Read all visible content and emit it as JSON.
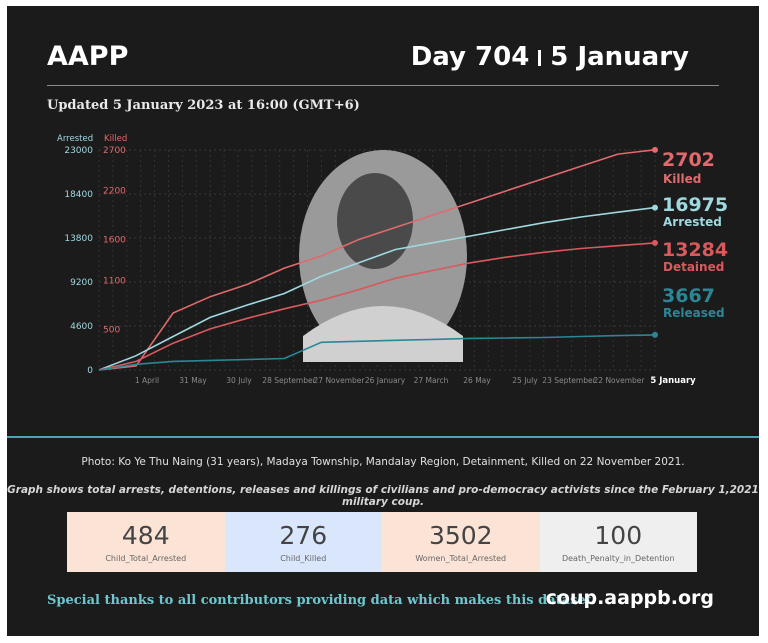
{
  "header": {
    "brand": "AAPP",
    "day": "Day 704",
    "date": "5 January"
  },
  "updated": "Updated 5 January 2023 at 16:00 (GMT+6)",
  "colors": {
    "killed": "#e06a6c",
    "arrested": "#9fd9e0",
    "detained": "#d9595c",
    "released": "#2b8797",
    "panel": "#1c1b1c"
  },
  "chart_data": {
    "type": "line",
    "axes": {
      "left": {
        "label": "Arrested",
        "ticks": [
          0,
          4600,
          9200,
          13800,
          18400,
          23000
        ],
        "range": [
          0,
          23000
        ]
      },
      "right": {
        "label": "Killed",
        "ticks": [
          500,
          1100,
          1600,
          2200,
          2700
        ],
        "range": [
          0,
          2700
        ]
      }
    },
    "x_ticks": [
      "1 April",
      "31 May",
      "30 July",
      "28 September",
      "27 November",
      "26 January",
      "27 March",
      "26 May",
      "25 July",
      "23 September",
      "22 November",
      "5 January"
    ],
    "series": [
      {
        "name": "Killed",
        "axis": "right",
        "end_label": "2702",
        "color": "#e06a6c",
        "values": [
          0,
          50,
          700,
          900,
          1050,
          1250,
          1400,
          1600,
          1750,
          1900,
          2050,
          2200,
          2350,
          2500,
          2650,
          2702
        ]
      },
      {
        "name": "Arrested",
        "axis": "left",
        "end_label": "16975",
        "color": "#9fd9e0",
        "values": [
          0,
          1500,
          3500,
          5500,
          6800,
          8000,
          9800,
          11200,
          12600,
          13300,
          14000,
          14700,
          15400,
          16000,
          16500,
          16975
        ]
      },
      {
        "name": "Detained",
        "axis": "left",
        "end_label": "13284",
        "color": "#d9595c",
        "values": [
          0,
          900,
          2800,
          4300,
          5400,
          6400,
          7300,
          8400,
          9600,
          10400,
          11200,
          11800,
          12300,
          12700,
          13000,
          13284
        ]
      },
      {
        "name": "Released",
        "axis": "left",
        "end_label": "3667",
        "color": "#2b8797",
        "values": [
          0,
          600,
          900,
          1000,
          1100,
          1200,
          2900,
          3000,
          3100,
          3200,
          3300,
          3350,
          3400,
          3500,
          3600,
          3667
        ]
      }
    ],
    "grid": true
  },
  "photo_caption": "Photo: Ko Ye Thu Naing (31 years), Madaya Township, Mandalay Region, Detainment, Killed on 22 November 2021.",
  "graph_caption": "Graph shows total arrests, detentions, releases and killings of civilians and pro-democracy activists since the February 1,2021 military coup.",
  "stats": [
    {
      "value": "484",
      "label": "Child_Total_Arrested",
      "bg": "#fbe3d6"
    },
    {
      "value": "276",
      "label": "Child_Killed",
      "bg": "#d9e6fb"
    },
    {
      "value": "3502",
      "label": "Women_Total_Arrested",
      "bg": "#fbe3d6"
    },
    {
      "value": "100",
      "label": "Death_Penalty_in_Detention",
      "bg": "#efefef"
    }
  ],
  "footer": {
    "thanks": "Special thanks to all contributors providing data which makes this dataset.",
    "site": "coup.aappb.org"
  }
}
